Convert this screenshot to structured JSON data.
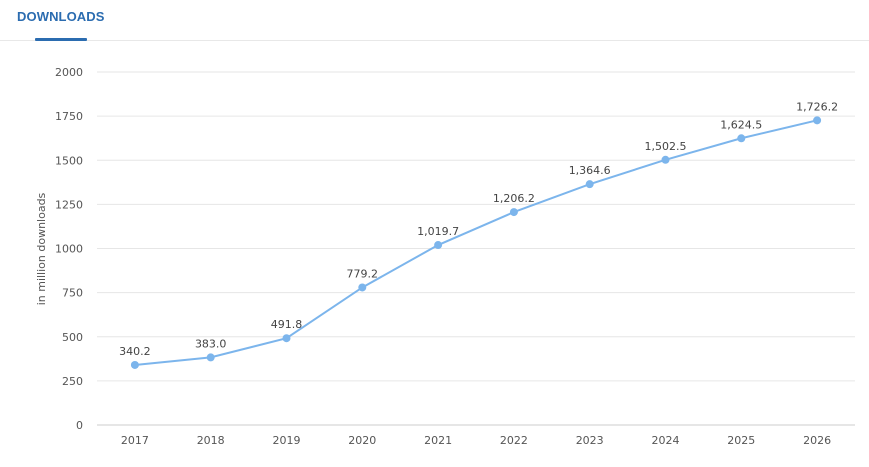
{
  "tab": {
    "label": "DOWNLOADS"
  },
  "chart_data": {
    "type": "line",
    "x": [
      "2017",
      "2018",
      "2019",
      "2020",
      "2021",
      "2022",
      "2023",
      "2024",
      "2025",
      "2026"
    ],
    "series": [
      {
        "values": [
          340.2,
          383.0,
          491.8,
          779.2,
          1019.7,
          1206.2,
          1364.6,
          1502.5,
          1624.5,
          1726.2
        ],
        "labels": [
          "340.2",
          "383.0",
          "491.8",
          "779.2",
          "1,019.7",
          "1,206.2",
          "1,364.6",
          "1,502.5",
          "1,624.5",
          "1,726.2"
        ],
        "color": "#7cb5ec"
      }
    ],
    "ylabel": "in million downloads",
    "ylim": [
      0,
      2000
    ],
    "yticks": [
      "0",
      "250",
      "500",
      "750",
      "1000",
      "1250",
      "1500",
      "1750",
      "2000"
    ],
    "grid": true
  }
}
